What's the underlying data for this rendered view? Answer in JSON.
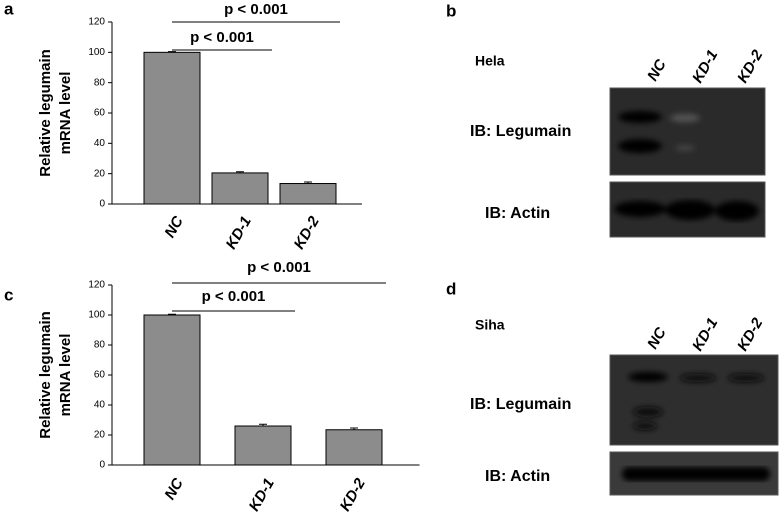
{
  "chart_data": [
    {
      "type": "bar",
      "panel": "a",
      "ylabel": [
        "Relative legumain",
        "mRNA level"
      ],
      "categories": [
        "NC",
        "KD-1",
        "KD-2"
      ],
      "values": [
        100,
        20.5,
        13.5
      ],
      "errors": [
        0.5,
        0.8,
        1
      ],
      "color": "#8c8c8c",
      "ylim": [
        0,
        120
      ],
      "yticks": [
        0,
        20,
        40,
        60,
        80,
        100,
        120
      ],
      "annotations": [
        {
          "text": "p < 0.001",
          "from": "NC",
          "to": "KD-1"
        },
        {
          "text": "p < 0.001",
          "from": "NC",
          "to": "KD-2"
        }
      ]
    },
    {
      "type": "bar",
      "panel": "c",
      "ylabel": [
        "Relative legumain",
        "mRNA level"
      ],
      "categories": [
        "NC",
        "KD-1",
        "KD-2"
      ],
      "values": [
        100,
        26,
        23.5
      ],
      "errors": [
        0.5,
        1.2,
        1.2
      ],
      "color": "#8c8c8c",
      "ylim": [
        0,
        120
      ],
      "yticks": [
        0,
        20,
        40,
        60,
        80,
        100,
        120
      ],
      "annotations": [
        {
          "text": "p < 0.001",
          "from": "NC",
          "to": "KD-1"
        },
        {
          "text": "p < 0.001",
          "from": "NC",
          "to": "KD-2"
        }
      ]
    }
  ],
  "blots": [
    {
      "panel": "b",
      "cell": "Hela",
      "lanes": [
        "NC",
        "KD-1",
        "KD-2"
      ],
      "rows": [
        "IB: Legumain",
        "IB: Actin"
      ]
    },
    {
      "panel": "d",
      "cell": "Siha",
      "lanes": [
        "NC",
        "KD-1",
        "KD-2"
      ],
      "rows": [
        "IB: Legumain",
        "IB: Actin"
      ]
    }
  ]
}
